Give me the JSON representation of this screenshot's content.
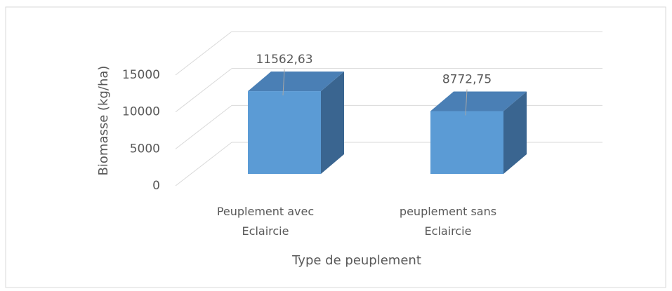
{
  "chart_data": {
    "type": "bar3d",
    "categories": [
      "Peuplement avec Eclaircie",
      "peuplement sans Eclaircie"
    ],
    "values": [
      11562.63,
      8772.75
    ],
    "value_labels": [
      "11562,63",
      "8772,75"
    ],
    "color": "#5b9bd5",
    "ylim": [
      0,
      15000
    ],
    "yticks": [
      0,
      5000,
      10000,
      15000
    ],
    "grid": true,
    "y_label": "Biomasse (kg/ha)",
    "x_label": "Type de peuplement"
  }
}
